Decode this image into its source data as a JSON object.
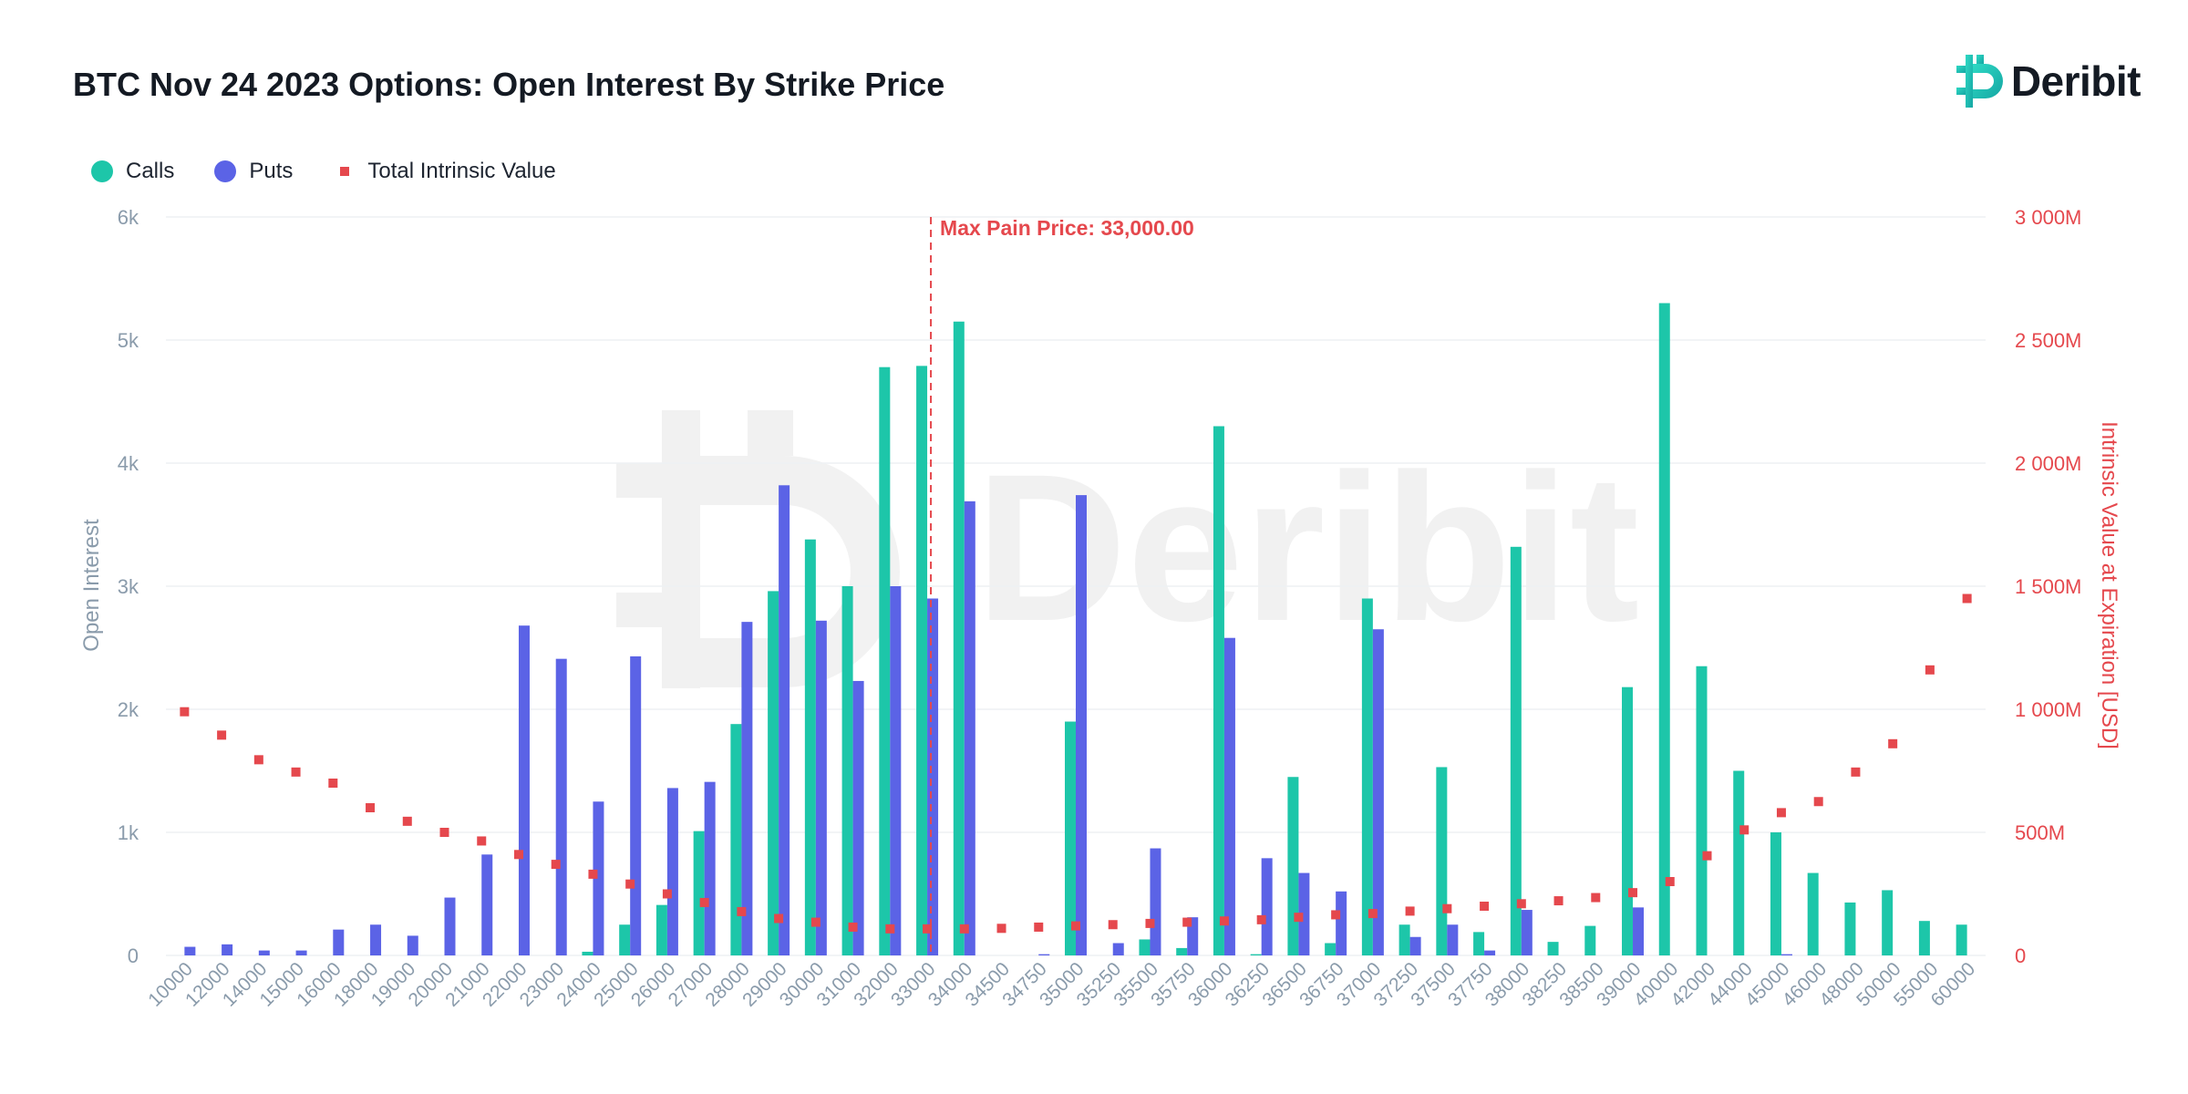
{
  "header": {
    "title": "BTC Nov 24 2023 Options: Open Interest By Strike Price",
    "brand": "Deribit"
  },
  "colors": {
    "calls": "#1dc6a9",
    "puts": "#5b63e6",
    "intrinsic": "#e5484d",
    "axis_left": "#8a9bab",
    "axis_right": "#e5484d",
    "grid": "#eef1f4"
  },
  "chart_data": {
    "type": "bar",
    "title": "BTC Nov 24 2023 Options: Open Interest By Strike Price",
    "ylabel": "Open Interest",
    "y2label": "Intrinsic Value at Expiration [USD]",
    "ylim": [
      0,
      6000
    ],
    "y2lim": [
      0,
      3000000000
    ],
    "yticks": [
      "0",
      "1k",
      "2k",
      "3k",
      "4k",
      "5k",
      "6k"
    ],
    "y2ticks": [
      "0",
      "500M",
      "1 000M",
      "1 500M",
      "2 000M",
      "2 500M",
      "3 000M"
    ],
    "grid": true,
    "legend_position": "top-left",
    "annotation": {
      "x": "33000",
      "label": "Max Pain Price: 33,000.00"
    },
    "categories": [
      "10000",
      "12000",
      "14000",
      "15000",
      "16000",
      "18000",
      "19000",
      "20000",
      "21000",
      "22000",
      "23000",
      "24000",
      "25000",
      "26000",
      "27000",
      "28000",
      "29000",
      "30000",
      "31000",
      "32000",
      "33000",
      "34000",
      "34500",
      "34750",
      "35000",
      "35250",
      "35500",
      "35750",
      "36000",
      "36250",
      "36500",
      "36750",
      "37000",
      "37250",
      "37500",
      "37750",
      "38000",
      "38250",
      "38500",
      "39000",
      "40000",
      "42000",
      "44000",
      "45000",
      "46000",
      "48000",
      "50000",
      "55000",
      "60000"
    ],
    "series": [
      {
        "name": "Calls",
        "type": "bar",
        "values": [
          0,
          0,
          0,
          0,
          0,
          0,
          0,
          0,
          0,
          0,
          0,
          30,
          250,
          410,
          1010,
          1880,
          2960,
          3380,
          3000,
          4780,
          4790,
          5150,
          0,
          0,
          1900,
          0,
          130,
          60,
          4300,
          10,
          1450,
          100,
          2900,
          250,
          1530,
          190,
          3320,
          110,
          240,
          2180,
          5300,
          2350,
          1500,
          1000,
          670,
          430,
          530,
          280,
          250
        ]
      },
      {
        "name": "Puts",
        "type": "bar",
        "values": [
          70,
          90,
          40,
          40,
          210,
          250,
          160,
          470,
          820,
          2680,
          2410,
          1250,
          2430,
          1360,
          1410,
          2710,
          3820,
          2720,
          2230,
          3000,
          2900,
          3690,
          0,
          10,
          3740,
          100,
          870,
          310,
          2580,
          790,
          670,
          520,
          2650,
          150,
          250,
          40,
          370,
          0,
          0,
          390,
          0,
          0,
          0,
          10,
          0,
          0,
          0,
          0,
          0
        ]
      },
      {
        "name": "Total Intrinsic Value",
        "type": "scatter",
        "values": [
          990000000,
          895000000,
          795000000,
          745000000,
          700000000,
          600000000,
          545000000,
          500000000,
          465000000,
          410000000,
          370000000,
          330000000,
          290000000,
          250000000,
          215000000,
          178000000,
          150000000,
          135000000,
          115000000,
          108000000,
          108000000,
          108000000,
          110000000,
          115000000,
          120000000,
          125000000,
          130000000,
          135000000,
          140000000,
          145000000,
          155000000,
          165000000,
          170000000,
          180000000,
          190000000,
          200000000,
          210000000,
          222000000,
          235000000,
          255000000,
          300000000,
          405000000,
          510000000,
          580000000,
          625000000,
          745000000,
          860000000,
          1160000000,
          1450000000
        ]
      }
    ]
  }
}
